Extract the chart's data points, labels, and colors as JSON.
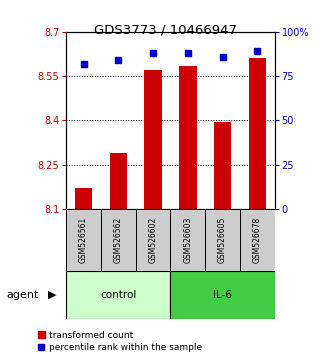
{
  "title": "GDS3773 / 10466947",
  "categories": [
    "GSM526561",
    "GSM526562",
    "GSM526602",
    "GSM526603",
    "GSM526605",
    "GSM526678"
  ],
  "bar_values": [
    8.17,
    8.29,
    8.57,
    8.585,
    8.395,
    8.61
  ],
  "percentile_values": [
    82,
    84,
    88,
    88,
    86,
    89
  ],
  "ylim_left": [
    8.1,
    8.7
  ],
  "ylim_right": [
    0,
    100
  ],
  "yticks_left": [
    8.1,
    8.25,
    8.4,
    8.55,
    8.7
  ],
  "yticks_right": [
    0,
    25,
    50,
    75,
    100
  ],
  "bar_color": "#cc0000",
  "dot_color": "#0000cc",
  "bar_width": 0.5,
  "n_control": 3,
  "n_il6": 3,
  "control_color": "#ccffcc",
  "il6_color": "#44cc44",
  "sample_box_color": "#cccccc",
  "legend_bar_label": "transformed count",
  "legend_dot_label": "percentile rank within the sample",
  "agent_label": "agent",
  "control_label": "control",
  "il6_label": "IL-6",
  "title_fontsize": 9.5,
  "tick_fontsize": 7,
  "label_fontsize": 7.5,
  "legend_fontsize": 6.5,
  "agent_fontsize": 8
}
